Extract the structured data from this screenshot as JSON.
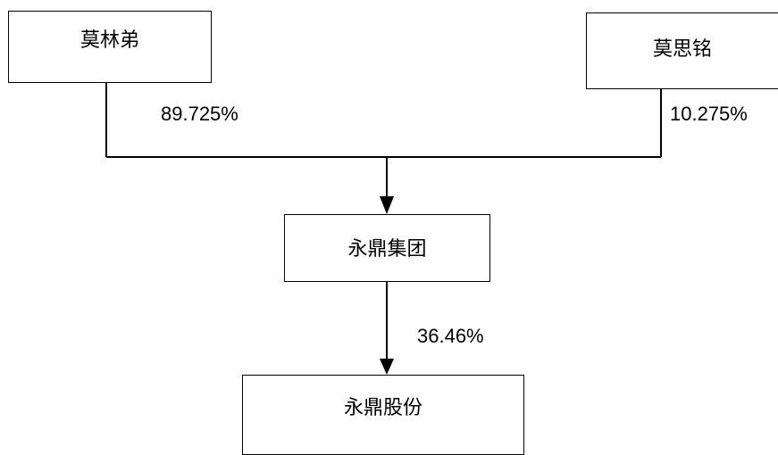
{
  "diagram": {
    "type": "ownership-structure",
    "nodes": {
      "molindi": "莫林弟",
      "mosiming": "莫思铭",
      "group": "永鼎集团",
      "company": "永鼎股份"
    },
    "edges": [
      {
        "from": "molindi",
        "to": "group",
        "share": "89.725%"
      },
      {
        "from": "mosiming",
        "to": "group",
        "share": "10.275%"
      },
      {
        "from": "group",
        "to": "company",
        "share": "36.46%"
      }
    ],
    "line_color": "#000000"
  }
}
